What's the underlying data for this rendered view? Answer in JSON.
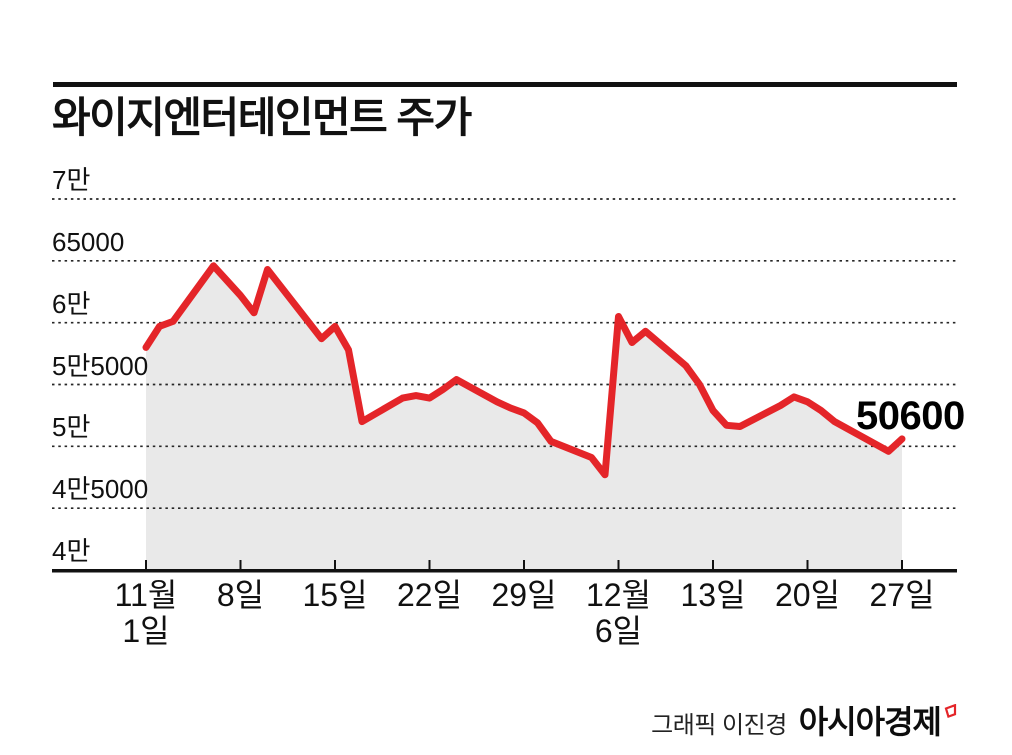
{
  "page": {
    "title": "와이지엔터테인먼트 주가",
    "credit_prefix": "그래픽 이진경",
    "credit_logo": "아시아경제"
  },
  "colors": {
    "line": "#e42529",
    "fill": "#e9e9e9",
    "grid": "#262626",
    "axis": "#111111",
    "text": "#111111"
  },
  "chart_data": {
    "type": "area",
    "title": "와이지엔터테인먼트 주가",
    "unit": "원",
    "ylim": [
      40000,
      70000
    ],
    "grid": "horizontal-dotted",
    "legend_position": "none",
    "last_price_label": "50600",
    "y_ticks": [
      {
        "label": "7만",
        "value": 70000
      },
      {
        "label": "65000",
        "value": 65000
      },
      {
        "label": "6만",
        "value": 60000
      },
      {
        "label": "5만5000",
        "value": 55000
      },
      {
        "label": "5만",
        "value": 50000
      },
      {
        "label": "4만5000",
        "value": 45000
      },
      {
        "label": "4만",
        "value": 40000
      }
    ],
    "x_ticks": [
      {
        "label": [
          "11월",
          "1일"
        ],
        "day": 0
      },
      {
        "label": [
          "8일"
        ],
        "day": 7
      },
      {
        "label": [
          "15일"
        ],
        "day": 14
      },
      {
        "label": [
          "22일"
        ],
        "day": 21
      },
      {
        "label": [
          "29일"
        ],
        "day": 28
      },
      {
        "label": [
          "12월",
          "6일"
        ],
        "day": 35
      },
      {
        "label": [
          "13일"
        ],
        "day": 42
      },
      {
        "label": [
          "20일"
        ],
        "day": 49
      },
      {
        "label": [
          "27일"
        ],
        "day": 56
      }
    ],
    "series": [
      {
        "name": "와이지엔터테인먼트 주가",
        "points": [
          {
            "date": "11월 1일",
            "day": 0,
            "value": 58000
          },
          {
            "date": "11월 2일",
            "day": 1,
            "value": 59700
          },
          {
            "date": "11월 3일",
            "day": 2,
            "value": 60100
          },
          {
            "date": "11월 6일",
            "day": 5,
            "value": 64600
          },
          {
            "date": "11월 7일",
            "day": 6,
            "value": 63400
          },
          {
            "date": "11월 8일",
            "day": 7,
            "value": 62200
          },
          {
            "date": "11월 9일",
            "day": 8,
            "value": 60800
          },
          {
            "date": "11월 10일",
            "day": 9,
            "value": 64300
          },
          {
            "date": "11월 13일",
            "day": 12,
            "value": 60100
          },
          {
            "date": "11월 14일",
            "day": 13,
            "value": 58700
          },
          {
            "date": "11월 15일",
            "day": 14,
            "value": 59700
          },
          {
            "date": "11월 16일",
            "day": 15,
            "value": 57800
          },
          {
            "date": "11월 17일",
            "day": 16,
            "value": 52000
          },
          {
            "date": "11월 20일",
            "day": 19,
            "value": 53900
          },
          {
            "date": "11월 21일",
            "day": 20,
            "value": 54100
          },
          {
            "date": "11월 22일",
            "day": 21,
            "value": 53900
          },
          {
            "date": "11월 23일",
            "day": 22,
            "value": 54600
          },
          {
            "date": "11월 24일",
            "day": 23,
            "value": 55400
          },
          {
            "date": "11월 27일",
            "day": 26,
            "value": 53600
          },
          {
            "date": "11월 28일",
            "day": 27,
            "value": 53100
          },
          {
            "date": "11월 29일",
            "day": 28,
            "value": 52700
          },
          {
            "date": "11월 30일",
            "day": 29,
            "value": 51900
          },
          {
            "date": "12월 1일",
            "day": 30,
            "value": 50400
          },
          {
            "date": "12월 4일",
            "day": 33,
            "value": 49100
          },
          {
            "date": "12월 5일",
            "day": 34,
            "value": 47700
          },
          {
            "date": "12월 6일",
            "day": 35,
            "value": 60500
          },
          {
            "date": "12월 7일",
            "day": 36,
            "value": 58400
          },
          {
            "date": "12월 8일",
            "day": 37,
            "value": 59300
          },
          {
            "date": "12월 11일",
            "day": 40,
            "value": 56500
          },
          {
            "date": "12월 12일",
            "day": 41,
            "value": 55000
          },
          {
            "date": "12월 13일",
            "day": 42,
            "value": 52900
          },
          {
            "date": "12월 14일",
            "day": 43,
            "value": 51700
          },
          {
            "date": "12월 15일",
            "day": 44,
            "value": 51600
          },
          {
            "date": "12월 18일",
            "day": 47,
            "value": 53300
          },
          {
            "date": "12월 19일",
            "day": 48,
            "value": 54000
          },
          {
            "date": "12월 20일",
            "day": 49,
            "value": 53600
          },
          {
            "date": "12월 21일",
            "day": 50,
            "value": 52900
          },
          {
            "date": "12월 22일",
            "day": 51,
            "value": 52000
          },
          {
            "date": "12월 26일",
            "day": 55,
            "value": 49600
          },
          {
            "date": "12월 27일",
            "day": 56,
            "value": 50600
          }
        ]
      }
    ]
  }
}
